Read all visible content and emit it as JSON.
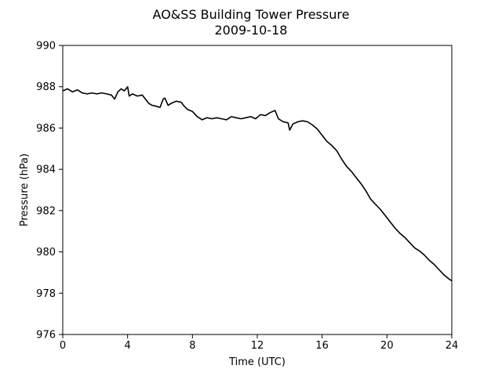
{
  "chart_data": {
    "type": "line",
    "title": "AO&SS Building Tower Pressure",
    "subtitle": "2009-10-18",
    "xlabel": "Time (UTC)",
    "ylabel": "Pressure (hPa)",
    "xlim": [
      0,
      24
    ],
    "ylim": [
      976,
      990
    ],
    "xticks": [
      "0",
      "4",
      "8",
      "12",
      "16",
      "20",
      "24"
    ],
    "yticks": [
      "976",
      "978",
      "980",
      "982",
      "984",
      "986",
      "988",
      "990"
    ],
    "grid": false,
    "line_color": "#000000",
    "series": [
      {
        "x": [
          0,
          0.3,
          0.6,
          0.9,
          1.2,
          1.5,
          1.8,
          2.1,
          2.4,
          2.7,
          3.0,
          3.2,
          3.4,
          3.6,
          3.8,
          4.0,
          4.1,
          4.3,
          4.6,
          4.9,
          5.1,
          5.3,
          5.5,
          5.8,
          6.0,
          6.2,
          6.3,
          6.5,
          6.7,
          7.0,
          7.3,
          7.5,
          7.7,
          8.0,
          8.3,
          8.6,
          8.9,
          9.2,
          9.5,
          9.8,
          10.1,
          10.4,
          10.7,
          11.0,
          11.3,
          11.6,
          11.9,
          12.2,
          12.5,
          12.8,
          13.1,
          13.3,
          13.6,
          13.9,
          14.0,
          14.2,
          14.5,
          14.8,
          15.1,
          15.4,
          15.7,
          16.0,
          16.3,
          16.6,
          16.9,
          17.2,
          17.5,
          17.8,
          18.1,
          18.4,
          18.7,
          19.0,
          19.3,
          19.6,
          19.9,
          20.2,
          20.5,
          20.8,
          21.1,
          21.4,
          21.7,
          22.0,
          22.3,
          22.6,
          22.9,
          23.2,
          23.5,
          23.8,
          24.0
        ],
        "values": [
          987.8,
          987.9,
          987.75,
          987.85,
          987.7,
          987.65,
          987.7,
          987.65,
          987.7,
          987.65,
          987.6,
          987.4,
          987.75,
          987.9,
          987.8,
          988.0,
          987.55,
          987.65,
          987.55,
          987.6,
          987.4,
          987.2,
          987.1,
          987.05,
          987.0,
          987.4,
          987.45,
          987.1,
          987.2,
          987.3,
          987.25,
          987.05,
          986.9,
          986.8,
          986.55,
          986.4,
          986.5,
          986.45,
          986.5,
          986.45,
          986.4,
          986.55,
          986.5,
          986.45,
          986.5,
          986.55,
          986.45,
          986.65,
          986.6,
          986.75,
          986.85,
          986.45,
          986.3,
          986.25,
          985.9,
          986.2,
          986.3,
          986.35,
          986.3,
          986.15,
          985.95,
          985.65,
          985.35,
          985.15,
          984.9,
          984.5,
          984.15,
          983.9,
          983.6,
          983.3,
          982.95,
          982.55,
          982.3,
          982.05,
          981.75,
          981.45,
          981.15,
          980.9,
          980.7,
          980.45,
          980.2,
          980.05,
          979.85,
          979.6,
          979.4,
          979.15,
          978.9,
          978.7,
          978.6
        ]
      }
    ]
  }
}
